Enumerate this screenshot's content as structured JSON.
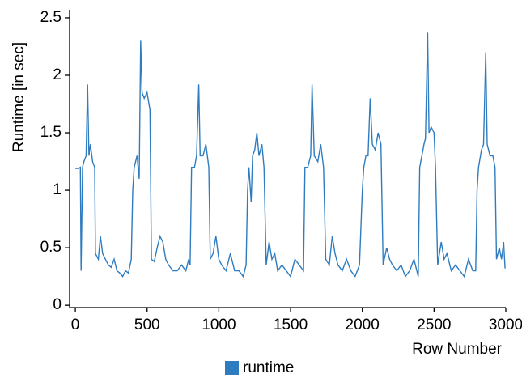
{
  "chart_data": {
    "type": "line",
    "xlabel": "Row Number",
    "ylabel": "Runtime [in sec]",
    "xlim": [
      -40,
      3000
    ],
    "ylim": [
      -0.02,
      2.57
    ],
    "xticks": [
      0,
      500,
      1000,
      1500,
      2000,
      2500,
      3000
    ],
    "yticks": [
      0,
      0.5,
      1,
      1.5,
      2,
      2.5
    ],
    "legend": "bottom",
    "series": [
      {
        "name": "runtime",
        "color": "#2e7cbf",
        "x": [
          0,
          20,
          35,
          40,
          50,
          60,
          75,
          85,
          95,
          105,
          120,
          135,
          140,
          160,
          175,
          190,
          210,
          230,
          250,
          270,
          290,
          310,
          330,
          350,
          370,
          390,
          400,
          410,
          430,
          445,
          455,
          465,
          480,
          500,
          520,
          530,
          550,
          570,
          590,
          610,
          630,
          650,
          680,
          710,
          740,
          770,
          790,
          800,
          810,
          830,
          845,
          860,
          870,
          890,
          910,
          930,
          940,
          960,
          980,
          1000,
          1020,
          1050,
          1080,
          1110,
          1140,
          1170,
          1190,
          1200,
          1210,
          1225,
          1235,
          1250,
          1265,
          1280,
          1300,
          1315,
          1330,
          1350,
          1370,
          1390,
          1410,
          1440,
          1470,
          1500,
          1530,
          1560,
          1590,
          1600,
          1620,
          1640,
          1650,
          1665,
          1690,
          1710,
          1730,
          1745,
          1770,
          1790,
          1810,
          1830,
          1860,
          1890,
          1920,
          1950,
          1980,
          2000,
          2010,
          2025,
          2040,
          2055,
          2070,
          2090,
          2110,
          2130,
          2145,
          2170,
          2190,
          2210,
          2240,
          2270,
          2300,
          2330,
          2360,
          2390,
          2400,
          2415,
          2430,
          2440,
          2455,
          2465,
          2480,
          2500,
          2510,
          2525,
          2550,
          2570,
          2590,
          2620,
          2650,
          2680,
          2710,
          2740,
          2770,
          2790,
          2800,
          2810,
          2830,
          2845,
          2860,
          2870,
          2890,
          2910,
          2925,
          2935,
          2955,
          2970,
          2985,
          2995
        ],
        "values": [
          1.19,
          1.19,
          1.2,
          0.3,
          1.2,
          1.25,
          1.3,
          1.92,
          1.3,
          1.4,
          1.25,
          1.2,
          0.45,
          0.4,
          0.6,
          0.45,
          0.4,
          0.35,
          0.33,
          0.4,
          0.3,
          0.28,
          0.25,
          0.3,
          0.28,
          0.4,
          1.0,
          1.2,
          1.3,
          1.1,
          2.3,
          1.85,
          1.8,
          1.85,
          1.7,
          0.4,
          0.38,
          0.5,
          0.6,
          0.55,
          0.4,
          0.35,
          0.3,
          0.3,
          0.35,
          0.3,
          0.4,
          0.35,
          1.2,
          1.2,
          1.3,
          1.92,
          1.3,
          1.3,
          1.4,
          1.2,
          0.4,
          0.45,
          0.6,
          0.4,
          0.35,
          0.3,
          0.45,
          0.3,
          0.3,
          0.25,
          0.35,
          1.0,
          1.2,
          0.9,
          1.3,
          1.35,
          1.5,
          1.3,
          1.4,
          1.2,
          0.35,
          0.55,
          0.4,
          0.45,
          0.3,
          0.35,
          0.3,
          0.25,
          0.4,
          0.35,
          0.3,
          1.2,
          1.2,
          1.3,
          1.92,
          1.3,
          1.25,
          1.4,
          1.2,
          0.4,
          0.35,
          0.6,
          0.45,
          0.35,
          0.3,
          0.4,
          0.3,
          0.25,
          0.35,
          1.0,
          1.2,
          1.3,
          1.3,
          1.8,
          1.4,
          1.35,
          1.5,
          1.4,
          0.35,
          0.5,
          0.4,
          0.35,
          0.3,
          0.35,
          0.25,
          0.3,
          0.4,
          0.25,
          1.2,
          1.3,
          1.4,
          1.45,
          2.37,
          1.5,
          1.55,
          1.5,
          1.2,
          0.35,
          0.55,
          0.4,
          0.45,
          0.3,
          0.35,
          0.3,
          0.25,
          0.4,
          0.3,
          0.3,
          1.0,
          1.2,
          1.35,
          1.4,
          2.2,
          1.4,
          1.3,
          1.3,
          1.2,
          0.4,
          0.5,
          0.4,
          0.55,
          0.32
        ]
      }
    ]
  }
}
